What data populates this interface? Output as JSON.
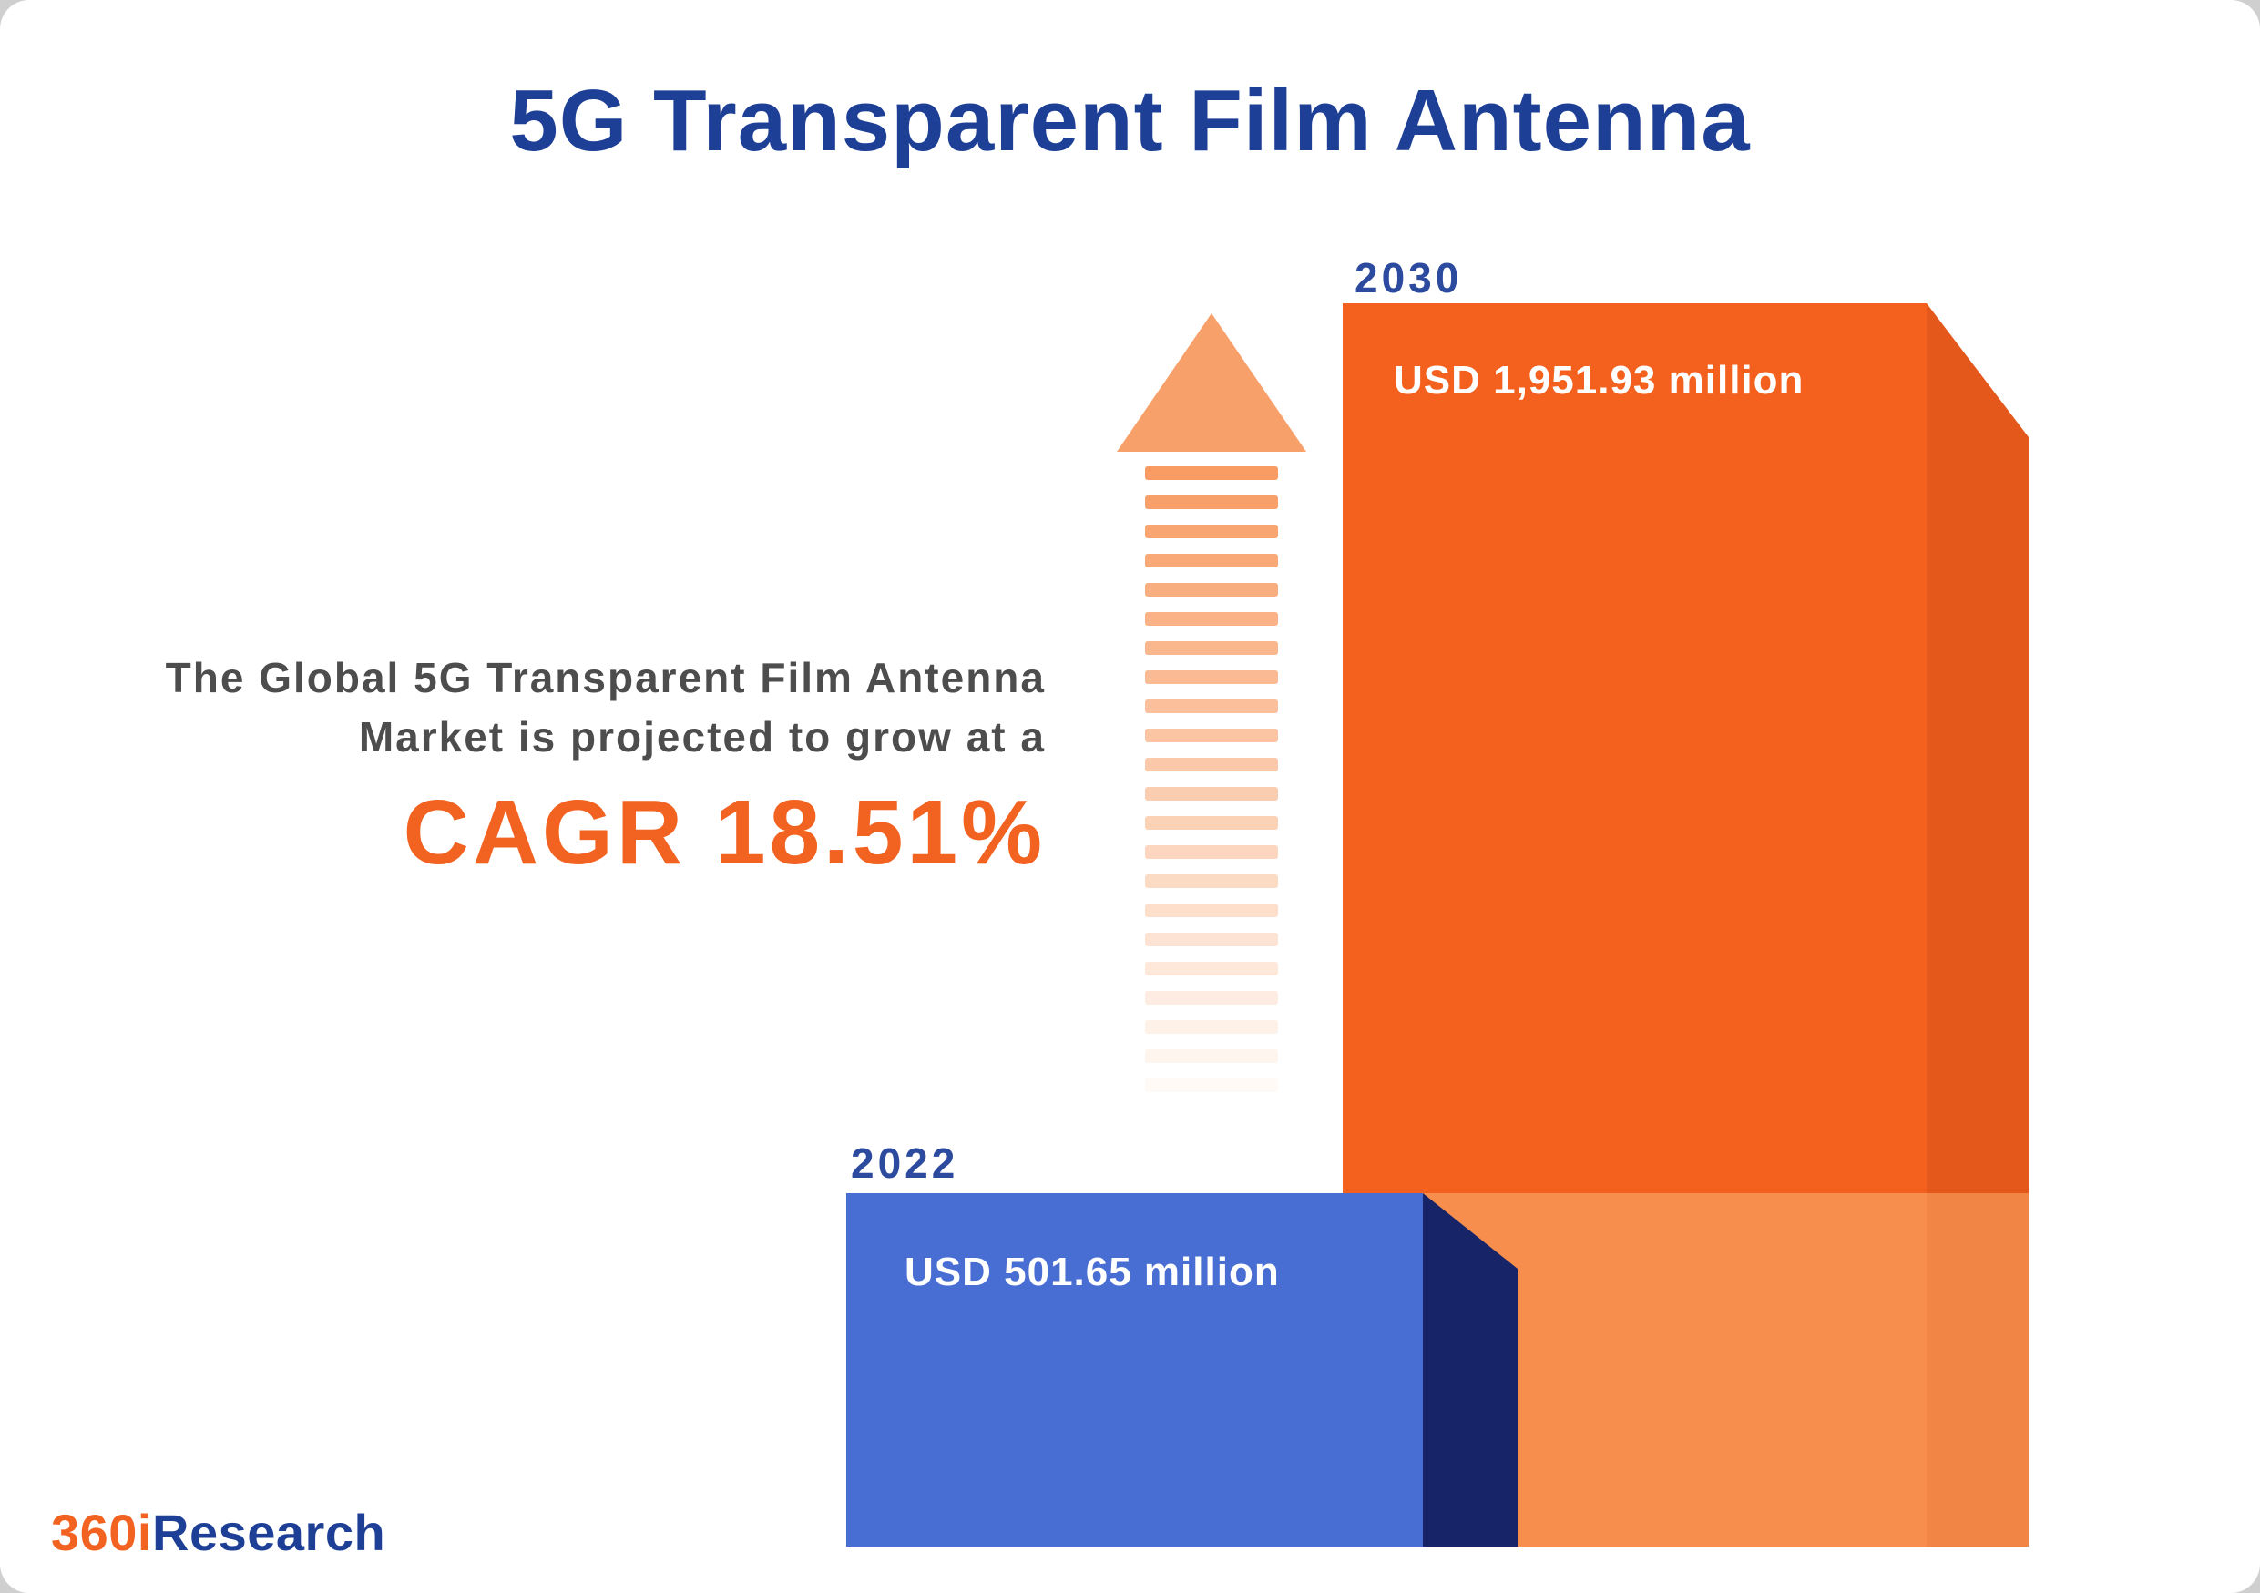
{
  "page": {
    "title": "5G Transparent Film Antenna"
  },
  "annotation": {
    "line1": "The Global 5G Transparent Film Antenna",
    "line2": "Market is projected to grow at a",
    "cagr": "CAGR 18.51%"
  },
  "bars": {
    "y2030": {
      "year_label": "2030",
      "value_label": "USD 1,951.93 million"
    },
    "y2022": {
      "year_label": "2022",
      "value_label": "USD 501.65 million"
    }
  },
  "logo": {
    "prefix": "360i",
    "suffix": "Research"
  },
  "colors": {
    "title_navy": "#1e3f96",
    "accent_orange": "#f26322",
    "bar_2030_front": "#f4601d",
    "bar_2030_side": "#e4581b",
    "bar_2030_light": "#f78e4d",
    "bar_2022_front": "#486dd3",
    "bar_2022_side": "#172467",
    "annotation_gray": "#4d4d4d",
    "arrow_orange": "#f8a06a"
  },
  "chart_data": {
    "type": "bar",
    "title": "5G Transparent Film Antenna",
    "categories": [
      "2022",
      "2030"
    ],
    "values": [
      501.65,
      1951.93
    ],
    "unit": "USD million",
    "value_labels": [
      "USD 501.65 million",
      "USD 1,951.93 million"
    ],
    "growth_annotation": "The Global 5G Transparent Film Antenna Market is projected to grow at a CAGR 18.51%",
    "cagr_percent": 18.51,
    "legend": "none",
    "axes_shown": false,
    "source_logo": "360iResearch"
  }
}
